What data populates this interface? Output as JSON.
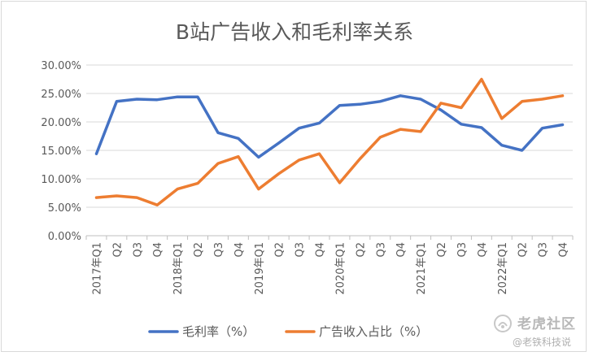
{
  "chart_data": {
    "type": "line",
    "title": "B站广告收入和毛利率关系",
    "categories": [
      "2017年Q1",
      "Q2",
      "Q3",
      "Q4",
      "2018年Q1",
      "Q2",
      "Q3",
      "Q4",
      "2019年Q1",
      "Q2",
      "Q3",
      "Q4",
      "2020年Q1",
      "Q2",
      "Q3",
      "Q4",
      "2021年Q1",
      "Q2",
      "Q3",
      "Q4",
      "2022年Q1",
      "Q2",
      "Q3",
      "Q4"
    ],
    "y_ticks": [
      "0.00%",
      "5.00%",
      "10.00%",
      "15.00%",
      "20.00%",
      "25.00%",
      "30.00%"
    ],
    "ylim": [
      0,
      30
    ],
    "grid": true,
    "legend_position": "bottom",
    "series": [
      {
        "name": "毛利率（%）",
        "color": "#4472C4",
        "values": [
          14.4,
          23.6,
          24.0,
          23.9,
          24.4,
          24.4,
          18.1,
          17.1,
          13.8,
          16.3,
          18.9,
          19.8,
          22.9,
          23.1,
          23.6,
          24.6,
          24.0,
          22.1,
          19.6,
          19.0,
          15.9,
          15.0,
          18.9,
          19.5
        ]
      },
      {
        "name": "广告收入占比（%）",
        "color": "#ED7D31",
        "values": [
          6.7,
          7.0,
          6.7,
          5.4,
          8.2,
          9.2,
          12.7,
          13.9,
          8.2,
          10.9,
          13.3,
          14.4,
          9.3,
          13.5,
          17.3,
          18.7,
          18.3,
          23.3,
          22.5,
          27.5,
          20.6,
          23.6,
          24.0,
          24.6
        ]
      }
    ]
  },
  "watermark": {
    "line1": "老虎社区",
    "line2": "@老铁科技说",
    "logo_icon": "tiger-paw-icon"
  }
}
